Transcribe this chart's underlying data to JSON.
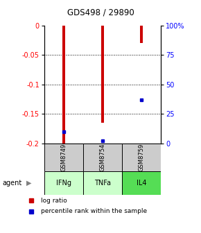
{
  "title": "GDS498 / 29890",
  "samples": [
    "GSM8749",
    "GSM8754",
    "GSM8759"
  ],
  "agents": [
    "IFNg",
    "TNFa",
    "IL4"
  ],
  "log_ratios": [
    -0.2,
    -0.165,
    -0.03
  ],
  "percentile_ranks": [
    10,
    2,
    37
  ],
  "yticks_left": [
    0,
    -0.05,
    -0.1,
    -0.15,
    -0.2
  ],
  "yticks_right": [
    100,
    75,
    50,
    25,
    0
  ],
  "bar_color": "#cc0000",
  "dot_color": "#0000cc",
  "agent_colors": [
    "#ccffcc",
    "#ccffcc",
    "#55dd55"
  ],
  "sample_bg": "#cccccc",
  "legend_log": "log ratio",
  "legend_pct": "percentile rank within the sample"
}
